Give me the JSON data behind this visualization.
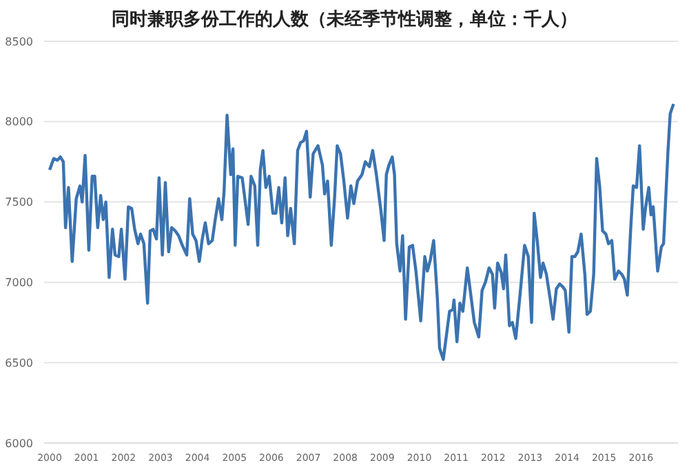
{
  "chart_data": {
    "type": "line",
    "title": "同时兼职多份工作的人数（未经季节性调整，单位：千人）",
    "x": [
      2000.0,
      2000.11,
      2000.21,
      2000.29,
      2000.37,
      2000.43,
      2000.51,
      2000.61,
      2000.72,
      2000.82,
      2000.88,
      2000.96,
      2001.06,
      2001.15,
      2001.22,
      2001.3,
      2001.38,
      2001.45,
      2001.52,
      2001.61,
      2001.7,
      2001.77,
      2001.87,
      2001.94,
      2002.04,
      2002.13,
      2002.22,
      2002.3,
      2002.39,
      2002.46,
      2002.55,
      2002.65,
      2002.72,
      2002.8,
      2002.89,
      2002.96,
      2003.05,
      2003.13,
      2003.22,
      2003.3,
      2003.4,
      2003.49,
      2003.59,
      2003.71,
      2003.79,
      2003.87,
      2003.96,
      2004.05,
      2004.13,
      2004.21,
      2004.3,
      2004.4,
      2004.48,
      2004.57,
      2004.66,
      2004.72,
      2004.8,
      2004.9,
      2004.96,
      2005.02,
      2005.09,
      2005.21,
      2005.37,
      2005.45,
      2005.55,
      2005.63,
      2005.7,
      2005.77,
      2005.85,
      2005.94,
      2006.04,
      2006.12,
      2006.2,
      2006.28,
      2006.37,
      2006.44,
      2006.52,
      2006.62,
      2006.71,
      2006.79,
      2006.87,
      2006.95,
      2007.05,
      2007.13,
      2007.26,
      2007.38,
      2007.44,
      2007.52,
      2007.62,
      2007.71,
      2007.78,
      2007.87,
      2007.96,
      2008.06,
      2008.15,
      2008.23,
      2008.33,
      2008.45,
      2008.54,
      2008.65,
      2008.74,
      2008.84,
      2008.96,
      2009.05,
      2009.11,
      2009.18,
      2009.27,
      2009.33,
      2009.39,
      2009.48,
      2009.55,
      2009.63,
      2009.73,
      2009.82,
      2009.91,
      2010.04,
      2010.15,
      2010.22,
      2010.3,
      2010.39,
      2010.49,
      2010.55,
      2010.65,
      2010.73,
      2010.82,
      2010.91,
      2010.94,
      2011.02,
      2011.1,
      2011.18,
      2011.3,
      2011.39,
      2011.49,
      2011.61,
      2011.7,
      2011.79,
      2011.89,
      2011.98,
      2012.04,
      2012.12,
      2012.22,
      2012.28,
      2012.34,
      2012.44,
      2012.52,
      2012.61,
      2012.73,
      2012.85,
      2012.95,
      2013.04,
      2013.11,
      2013.2,
      2013.28,
      2013.35,
      2013.44,
      2013.54,
      2013.62,
      2013.71,
      2013.8,
      2013.89,
      2013.95,
      2014.05,
      2014.13,
      2014.21,
      2014.29,
      2014.38,
      2014.48,
      2014.54,
      2014.63,
      2014.72,
      2014.8,
      2014.88,
      2014.96,
      2015.05,
      2015.12,
      2015.21,
      2015.29,
      2015.39,
      2015.48,
      2015.55,
      2015.63,
      2015.72,
      2015.79,
      2015.88,
      2015.96,
      2016.06,
      2016.12,
      2016.21,
      2016.27,
      2016.33,
      2016.45,
      2016.55,
      2016.61,
      2016.73,
      2016.79,
      2016.88
    ],
    "series": [
      {
        "color": "#3b73b0",
        "values": [
          7700,
          7770,
          7760,
          7780,
          7750,
          7340,
          7590,
          7130,
          7520,
          7600,
          7500,
          7790,
          7200,
          7660,
          7660,
          7340,
          7540,
          7390,
          7500,
          7030,
          7330,
          7170,
          7160,
          7330,
          7020,
          7470,
          7460,
          7330,
          7240,
          7300,
          7240,
          6870,
          7320,
          7330,
          7270,
          7650,
          7170,
          7620,
          7190,
          7340,
          7320,
          7290,
          7230,
          7170,
          7520,
          7300,
          7260,
          7130,
          7270,
          7370,
          7240,
          7260,
          7390,
          7520,
          7390,
          7570,
          8040,
          7670,
          7830,
          7230,
          7660,
          7650,
          7360,
          7660,
          7600,
          7230,
          7700,
          7820,
          7590,
          7660,
          7430,
          7430,
          7590,
          7370,
          7650,
          7290,
          7460,
          7240,
          7820,
          7870,
          7880,
          7940,
          7530,
          7800,
          7850,
          7730,
          7550,
          7630,
          7230,
          7530,
          7850,
          7800,
          7630,
          7400,
          7600,
          7490,
          7630,
          7670,
          7750,
          7720,
          7820,
          7670,
          7450,
          7260,
          7670,
          7730,
          7780,
          7670,
          7240,
          7070,
          7290,
          6770,
          7220,
          7230,
          7070,
          6760,
          7160,
          7070,
          7140,
          7260,
          6900,
          6590,
          6520,
          6660,
          6820,
          6830,
          6890,
          6630,
          6870,
          6820,
          7090,
          6930,
          6750,
          6660,
          6950,
          7000,
          7090,
          7050,
          6840,
          7120,
          7060,
          6960,
          7170,
          6730,
          6750,
          6650,
          6930,
          7230,
          7160,
          6750,
          7430,
          7240,
          7030,
          7120,
          7050,
          6900,
          6770,
          6960,
          6990,
          6970,
          6950,
          6690,
          7160,
          7160,
          7190,
          7300,
          7050,
          6800,
          6820,
          7050,
          7770,
          7600,
          7320,
          7300,
          7240,
          7260,
          7020,
          7070,
          7050,
          7020,
          6920,
          7330,
          7600,
          7590,
          7850,
          7330,
          7460,
          7590,
          7420,
          7470,
          7070,
          7220,
          7240,
          7820,
          8050,
          8110
        ]
      }
    ],
    "xlim": [
      1999.85,
      2017
    ],
    "xticks": [
      2000,
      2001,
      2002,
      2003,
      2004,
      2005,
      2006,
      2007,
      2008,
      2009,
      2010,
      2011,
      2012,
      2013,
      2014,
      2015,
      2016
    ],
    "ylim": [
      6000,
      8500
    ],
    "yticks": [
      6000,
      6500,
      7000,
      7500,
      8000,
      8500
    ],
    "grid": "y",
    "marker": "none",
    "line_style": "solid",
    "legend": false
  }
}
